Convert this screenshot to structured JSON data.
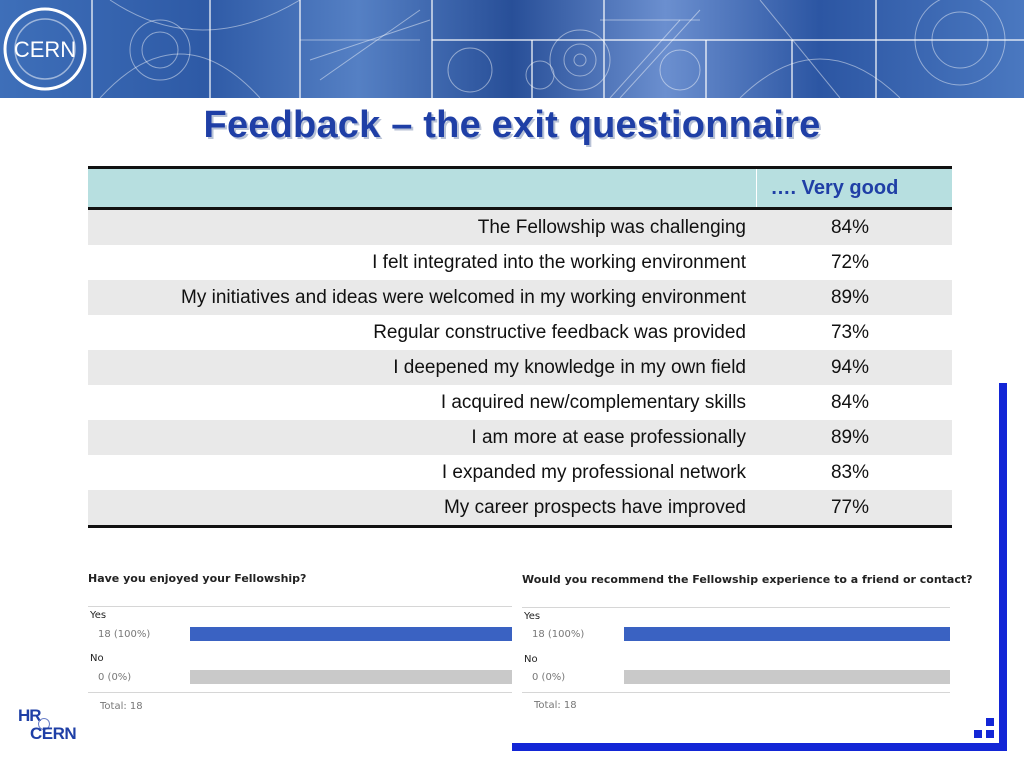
{
  "banner": {
    "logo_text": "CERN"
  },
  "title": "Feedback – the exit questionnaire",
  "table": {
    "header_label": "…. Very good",
    "rows": [
      {
        "statement": "The Fellowship was challenging",
        "value": "84%"
      },
      {
        "statement": "I felt integrated into the working environment",
        "value": "72%"
      },
      {
        "statement": "My initiatives and ideas were welcomed in my working environment",
        "value": "89%"
      },
      {
        "statement": "Regular constructive feedback was provided",
        "value": "73%"
      },
      {
        "statement": "I deepened my knowledge in my own field",
        "value": "94%"
      },
      {
        "statement": "I acquired new/complementary skills",
        "value": "84%"
      },
      {
        "statement": "I am more at ease professionally",
        "value": "89%"
      },
      {
        "statement": "I expanded my professional network",
        "value": "83%"
      },
      {
        "statement": "My career prospects have improved",
        "value": "77%"
      }
    ]
  },
  "poll_left": {
    "question": "Have you enjoyed your Fellowship?",
    "options": [
      {
        "label": "Yes",
        "count": "18 (100%)",
        "fraction": 1.0
      },
      {
        "label": "No",
        "count": "0 (0%)",
        "fraction": 0.0
      }
    ],
    "total": "Total: 18"
  },
  "poll_right": {
    "question": "Would you recommend the Fellowship experience to a friend or contact?",
    "options": [
      {
        "label": "Yes",
        "count": "18 (100%)",
        "fraction": 1.0
      },
      {
        "label": "No",
        "count": "0 (0%)",
        "fraction": 0.0
      }
    ],
    "total": "Total: 18"
  },
  "footer_logo": {
    "line1": "HR",
    "line2": "CERN"
  },
  "colors": {
    "title": "#1f3fa6",
    "header_bg": "#b7dfe0",
    "bar_filled": "#3a62c2",
    "bar_empty": "#c9c9c9",
    "frame": "#1326d6"
  }
}
